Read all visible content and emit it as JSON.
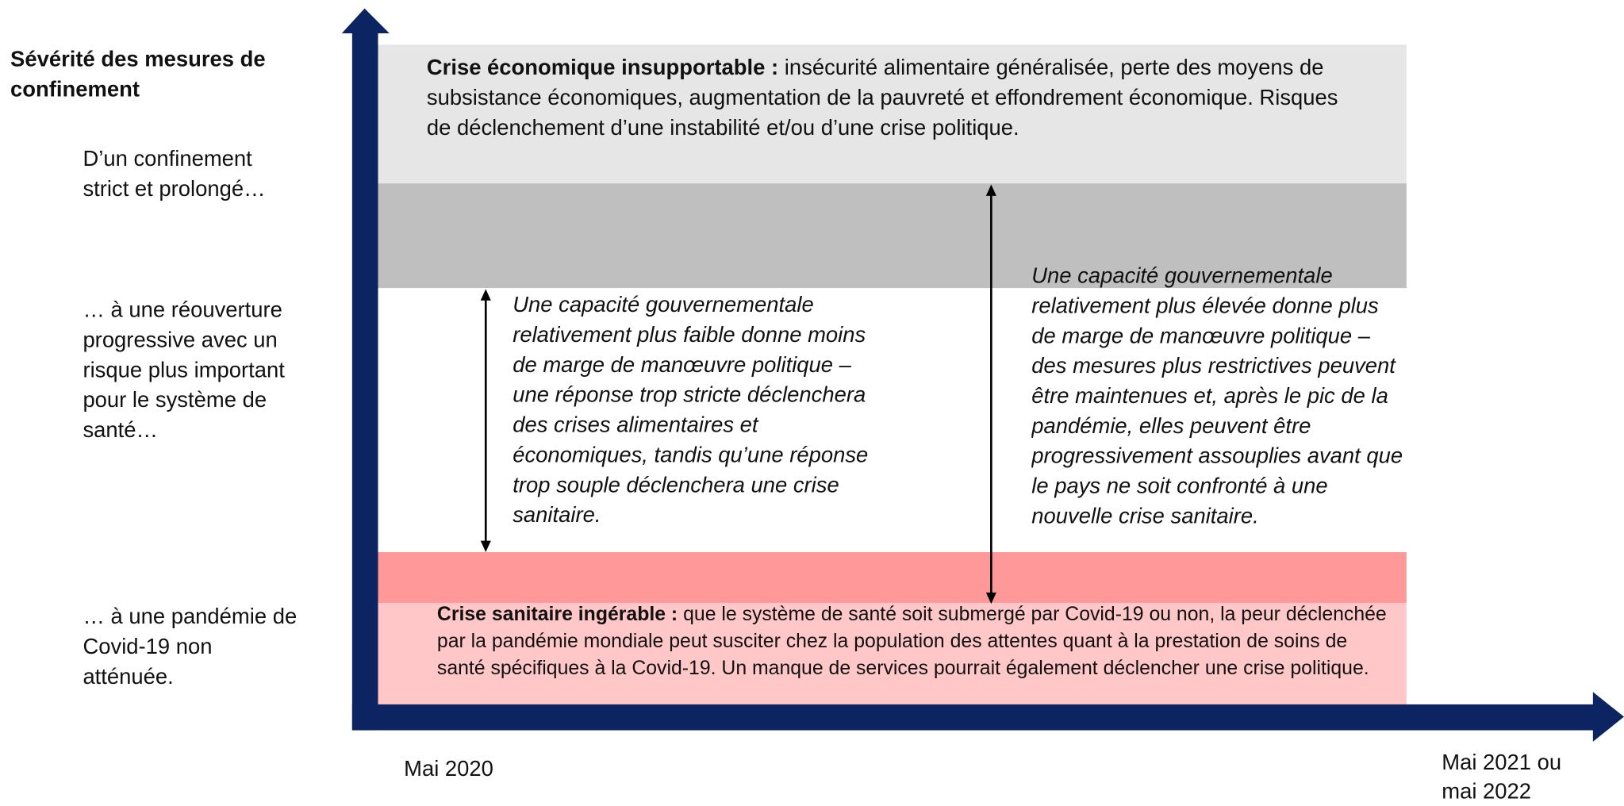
{
  "y_axis_title": "Sévérité des mesures de confinement",
  "y_levels": [
    "D’un confinement strict et prolongé…",
    "… à une réouverture progressive avec un risque plus important pour le système de santé…",
    "… à une pandémie de Covid-19 non atténuée."
  ],
  "economic_crisis": {
    "label": "Crise économique insupportable :",
    "text": "insécurité alimentaire généralisée, perte des moyens de subsistance économiques, augmentation de la pauvreté et effondrement économique. Risques de déclenchement d’une instabilité et/ou d’une crise politique."
  },
  "health_crisis": {
    "label": "Crise sanitaire ingérable :",
    "text": "que le système de santé soit submergé par Covid-19 ou non, la peur déclenchée par la pandémie mondiale peut susciter chez la population des attentes quant à la prestation de soins de santé spécifiques à la Covid-19. Un manque de services pourrait également déclencher une crise politique."
  },
  "notes": [
    "Une capacité gouvernementale relativement plus faible donne moins de marge de manœuvre politique – une réponse trop stricte déclenchera des crises alimentaires et économiques, tandis qu’une réponse trop souple déclenchera une crise sanitaire.",
    "Une capacité gouvernementale relativement plus élevée donne plus de marge de manœuvre politique – des mesures plus restrictives peuvent être maintenues et, après le pic de la pandémie, elles peuvent être progressivement assouplies avant que le pays ne soit confronté à une nouvelle crise sanitaire."
  ],
  "x_axis": {
    "start": "Mai 2020",
    "end": "Mai 2021 ou mai 2022"
  }
}
